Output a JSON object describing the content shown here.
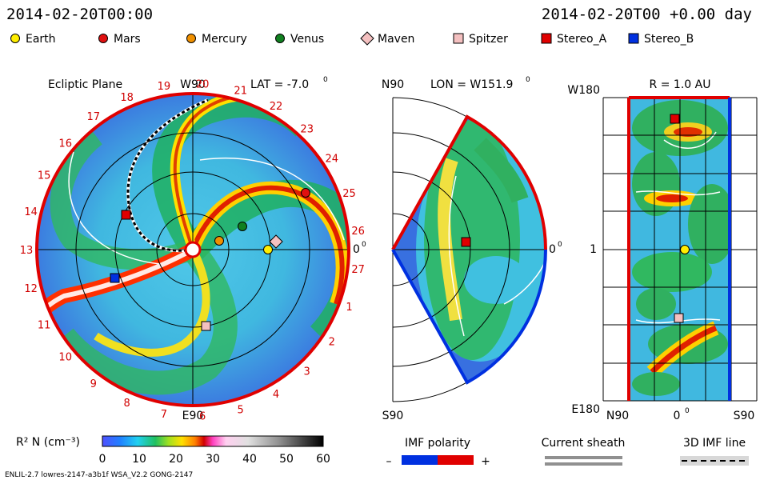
{
  "header": {
    "date_left": "2014-02-20T00:00",
    "date_right": "2014-02-20T00 +0.00 day"
  },
  "legend": [
    {
      "name": "Earth",
      "shape": "circle",
      "color": "#ffee00"
    },
    {
      "name": "Mars",
      "shape": "circle",
      "color": "#e01010"
    },
    {
      "name": "Mercury",
      "shape": "circle",
      "color": "#f09000"
    },
    {
      "name": "Venus",
      "shape": "circle",
      "color": "#108020"
    },
    {
      "name": "Maven",
      "shape": "diamond",
      "color": "#f4c0c0"
    },
    {
      "name": "Spitzer",
      "shape": "square",
      "color": "#f4c0c0"
    },
    {
      "name": "Stereo_A",
      "shape": "square",
      "color": "#e00000"
    },
    {
      "name": "Stereo_B",
      "shape": "square",
      "color": "#0030e0"
    }
  ],
  "ecliptic": {
    "title": "Ecliptic Plane",
    "top_label": "W90",
    "bottom_label": "E90",
    "right_label": "0",
    "lat_label": "LAT = -7.0",
    "degree_mark": "0",
    "rotation_numbers": [
      "19",
      "20",
      "21",
      "22",
      "23",
      "24",
      "25",
      "26",
      "27",
      "1",
      "2",
      "3",
      "4",
      "5",
      "6",
      "7",
      "8",
      "9",
      "10",
      "11",
      "12",
      "13",
      "14",
      "15",
      "16",
      "17",
      "18"
    ]
  },
  "meridional": {
    "top_label": "N90",
    "bottom_label": "S90",
    "right_label": "0",
    "lon_label": "LON = W151.9",
    "degree_mark": "0"
  },
  "rpanel": {
    "title": "R = 1.0 AU",
    "top_label": "W180",
    "mid_label": "1",
    "bottom_label": "E180",
    "x_left": "N90",
    "x_mid": "0",
    "x_right": "S90",
    "degree_mark": "0"
  },
  "colorbar": {
    "label": "R² N (cm⁻³)",
    "ticks": [
      "0",
      "10",
      "20",
      "30",
      "40",
      "50",
      "60"
    ]
  },
  "imf": {
    "label": "IMF polarity",
    "minus": "–",
    "plus": "+"
  },
  "sheath": {
    "label": "Current sheath"
  },
  "imf3d": {
    "label": "3D IMF line"
  },
  "footer": {
    "text": "ENLIL-2.7 lowres-2147-a3b1f WSA_V2.2 GONG-2147"
  }
}
